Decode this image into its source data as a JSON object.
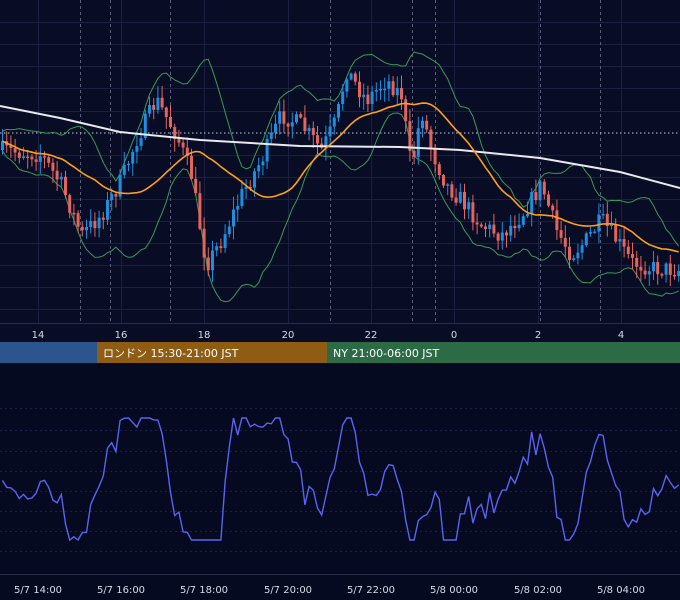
{
  "chart_data": [
    {
      "type": "candlestick",
      "panel": "price",
      "xticks": [
        "14",
        "16",
        "18",
        "20",
        "22",
        "0",
        "2",
        "4"
      ],
      "overlays": [
        {
          "name": "",
          "kind": "long moving average",
          "color": "#e9e9ee"
        },
        {
          "name": "",
          "kind": "short moving average",
          "color": "#ff9f1c"
        },
        {
          "name": "",
          "kind": "bollinger bands",
          "color": "#3c9a56"
        }
      ],
      "candle_colors": {
        "up": "#1e8fe0",
        "down": "#e5655d"
      },
      "reference_line": {
        "style": "dotted",
        "color": "#c8ccd8"
      },
      "grid": true
    },
    {
      "type": "line",
      "panel": "oscillator",
      "series_color": "#5a63f2",
      "xticks": [
        "5/7 14:00",
        "5/7 16:00",
        "5/7 18:00",
        "5/7 20:00",
        "5/7 22:00",
        "5/8 00:00",
        "5/8 02:00",
        "5/8 04:00"
      ],
      "grid": true
    }
  ],
  "sessions": [
    {
      "label": "",
      "color": "#2b558c"
    },
    {
      "label": "ロンドン 15:30-21:00 JST",
      "color": "#8f5c14"
    },
    {
      "label": "NY 21:00-06:00 JST",
      "color": "#2d6b46"
    }
  ]
}
